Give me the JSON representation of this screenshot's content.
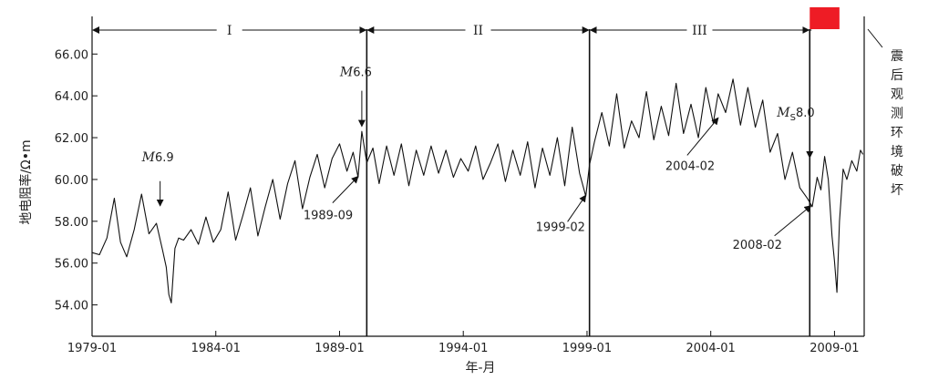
{
  "chart_data": {
    "type": "line",
    "xlabel": "年-月",
    "ylabel": "地电阻率/Ω•m",
    "xlim": [
      1979.0,
      2010.2
    ],
    "ylim": [
      52.5,
      67.8
    ],
    "x_ticks": [
      1979.0,
      1984.0,
      1989.0,
      1994.0,
      1999.0,
      2004.0,
      2009.0
    ],
    "x_tick_labels": [
      "1979-01",
      "1984-01",
      "1989-01",
      "1994-01",
      "1999-01",
      "2004-01",
      "2009-01"
    ],
    "y_ticks": [
      54,
      56,
      58,
      60,
      62,
      64,
      66
    ],
    "y_tick_labels": [
      "54.00",
      "56.00",
      "58.00",
      "60.00",
      "62.00",
      "64.00",
      "66.00"
    ],
    "series": [
      {
        "x": [
          1979.0,
          1979.3,
          1979.6,
          1979.9,
          1980.15,
          1980.4,
          1980.7,
          1981.0,
          1981.3,
          1981.6,
          1981.85,
          1982.0,
          1982.1,
          1982.2,
          1982.35,
          1982.5,
          1982.7,
          1983.0,
          1983.3,
          1983.6,
          1983.9,
          1984.2,
          1984.5,
          1984.8,
          1985.1,
          1985.4,
          1985.7,
          1986.0,
          1986.3,
          1986.6,
          1986.9,
          1987.2,
          1987.5,
          1987.8,
          1988.1,
          1988.4,
          1988.7,
          1989.0,
          1989.3,
          1989.55,
          1989.75,
          1989.9,
          1990.1,
          1990.35,
          1990.6,
          1990.9,
          1991.2,
          1991.5,
          1991.8,
          1992.1,
          1992.4,
          1992.7,
          1993.0,
          1993.3,
          1993.6,
          1993.9,
          1994.2,
          1994.5,
          1994.8,
          1995.1,
          1995.4,
          1995.7,
          1996.0,
          1996.3,
          1996.6,
          1996.9,
          1997.2,
          1997.5,
          1997.8,
          1998.1,
          1998.4,
          1998.7,
          1998.95,
          1999.1,
          1999.3,
          1999.6,
          1999.9,
          2000.2,
          2000.5,
          2000.8,
          2001.1,
          2001.4,
          2001.7,
          2002.0,
          2002.3,
          2002.6,
          2002.9,
          2003.2,
          2003.5,
          2003.8,
          2004.1,
          2004.3,
          2004.6,
          2004.9,
          2005.2,
          2005.5,
          2005.8,
          2006.1,
          2006.4,
          2006.7,
          2007.0,
          2007.3,
          2007.6,
          2007.9,
          2008.1,
          2008.3,
          2008.45,
          2008.6,
          2008.75,
          2008.9,
          2009.0,
          2009.1,
          2009.2,
          2009.35,
          2009.5,
          2009.7,
          2009.9,
          2010.05,
          2010.15
        ],
        "y": [
          56.5,
          56.4,
          57.2,
          59.1,
          57.0,
          56.3,
          57.6,
          59.3,
          57.4,
          57.9,
          56.6,
          55.8,
          54.5,
          54.1,
          56.7,
          57.2,
          57.1,
          57.6,
          56.9,
          58.2,
          57.0,
          57.6,
          59.4,
          57.1,
          58.3,
          59.6,
          57.3,
          58.7,
          60.0,
          58.1,
          59.8,
          60.9,
          58.6,
          60.1,
          61.2,
          59.6,
          61.0,
          61.7,
          60.4,
          61.3,
          60.1,
          62.3,
          60.8,
          61.5,
          59.8,
          61.6,
          60.2,
          61.7,
          59.7,
          61.4,
          60.2,
          61.6,
          60.3,
          61.4,
          60.1,
          61.0,
          60.4,
          61.6,
          60.0,
          60.8,
          61.7,
          59.9,
          61.4,
          60.2,
          61.8,
          59.6,
          61.5,
          60.2,
          62.0,
          59.7,
          62.5,
          60.3,
          59.2,
          60.7,
          61.8,
          63.2,
          61.6,
          64.1,
          61.5,
          62.8,
          62.0,
          64.2,
          61.9,
          63.5,
          62.1,
          64.6,
          62.2,
          63.6,
          62.0,
          64.4,
          62.7,
          64.1,
          63.2,
          64.8,
          62.6,
          64.4,
          62.5,
          63.8,
          61.3,
          62.2,
          60.0,
          61.3,
          59.6,
          59.1,
          58.7,
          60.1,
          59.5,
          61.1,
          60.0,
          57.3,
          56.1,
          54.6,
          58.0,
          60.5,
          60.0,
          60.9,
          60.4,
          61.4,
          61.2
        ]
      }
    ],
    "vertical_lines_at": [
      1990.1,
      1999.1,
      2008.0
    ],
    "periods": [
      {
        "label": "I",
        "from": 1979.0,
        "to": 1990.1
      },
      {
        "label": "II",
        "from": 1990.1,
        "to": 1999.1
      },
      {
        "label": "III",
        "from": 1999.1,
        "to": 2008.0
      }
    ],
    "shaded_region": {
      "from": 2008.0,
      "to": 2009.2,
      "color": "#ee1c25"
    },
    "annotations": [
      {
        "text_prefix": "M",
        "text_main": "6.9",
        "x": 1981.75,
        "y": 58.7
      },
      {
        "text_prefix": "M",
        "text_main": "6.6",
        "x": 1989.9,
        "y": 62.5
      },
      {
        "text_prefix": "M",
        "text_sub": "S",
        "text_main": "8.0",
        "x": 2008.0,
        "y": 61.0
      },
      {
        "text_main": "1989-09",
        "x": 1989.75,
        "y": 60.1
      },
      {
        "text_main": "1999-02",
        "x": 1998.95,
        "y": 59.2
      },
      {
        "text_main": "2004-02",
        "x": 2004.3,
        "y": 62.9
      },
      {
        "text_main": "2008-02",
        "x": 2008.05,
        "y": 58.7
      }
    ],
    "side_label": "震后观测环境破坏",
    "grid": false,
    "colors": {
      "line": "#111111",
      "axis": "#111111",
      "red": "#ee1c25"
    }
  }
}
